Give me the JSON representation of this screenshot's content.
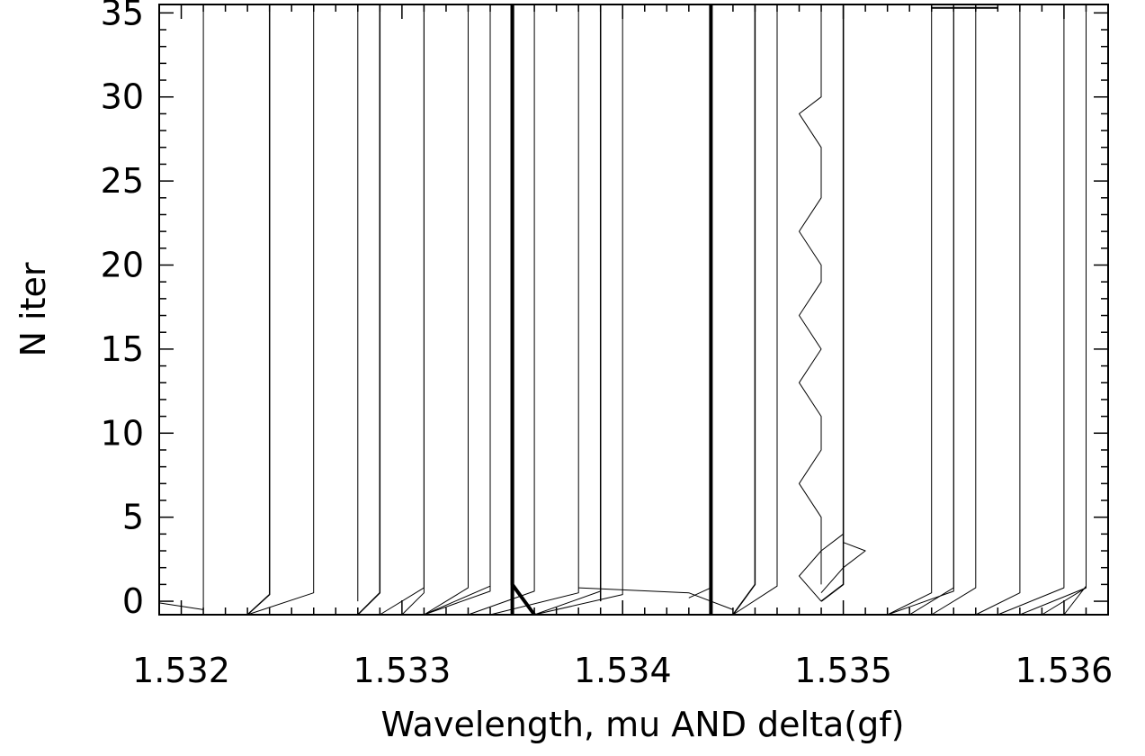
{
  "chart_data": {
    "type": "line",
    "title": "",
    "xlabel": "Wavelength, mu AND delta(gf)",
    "ylabel": "N iter",
    "xlim": [
      1.5319,
      1.5362
    ],
    "ylim": [
      -0.8,
      35.5
    ],
    "x_ticks": [
      1.532,
      1.533,
      1.534,
      1.535,
      1.536
    ],
    "x_tick_labels": [
      "1.532",
      "1.533",
      "1.534",
      "1.535",
      "1.536"
    ],
    "y_ticks": [
      0,
      5,
      10,
      15,
      20,
      25,
      30,
      35
    ],
    "y_tick_labels": [
      "0",
      "5",
      "10",
      "15",
      "20",
      "25",
      "30",
      "35"
    ],
    "grid": false,
    "line_color": "#000000",
    "legend_marker": {
      "x_range": [
        1.5354,
        1.5357
      ],
      "y": 35.3
    },
    "series": [
      {
        "width": 1,
        "points": [
          [
            1.5319,
            -0.1
          ],
          [
            1.5321,
            -0.5
          ],
          [
            1.5321,
            0.0
          ],
          [
            1.5321,
            0.5
          ],
          [
            1.5321,
            35.5
          ]
        ]
      },
      {
        "width": 1.5,
        "points": [
          [
            1.5323,
            -0.8
          ],
          [
            1.5324,
            0.4
          ],
          [
            1.5324,
            35.5
          ]
        ]
      },
      {
        "width": 1,
        "points": [
          [
            1.5323,
            -0.8
          ],
          [
            1.5326,
            0.5
          ],
          [
            1.5326,
            35.5
          ]
        ]
      },
      {
        "width": 1,
        "points": [
          [
            1.5328,
            0.0
          ],
          [
            1.5328,
            1.0
          ],
          [
            1.5328,
            3.0
          ],
          [
            1.5328,
            5.0
          ],
          [
            1.5328,
            7.0
          ],
          [
            1.5328,
            9.0
          ],
          [
            1.5328,
            11.0
          ],
          [
            1.5328,
            13.0
          ],
          [
            1.5328,
            15.0
          ],
          [
            1.5328,
            17.0
          ],
          [
            1.5328,
            19.0
          ],
          [
            1.5328,
            21.0
          ],
          [
            1.5328,
            23.0
          ],
          [
            1.5328,
            25.0
          ],
          [
            1.5328,
            27.0
          ],
          [
            1.5328,
            29.0
          ],
          [
            1.5328,
            31.0
          ],
          [
            1.5328,
            33.0
          ],
          [
            1.5328,
            35.5
          ]
        ]
      },
      {
        "width": 1.5,
        "points": [
          [
            1.5328,
            -0.8
          ],
          [
            1.5329,
            0.5
          ],
          [
            1.5329,
            5.0
          ],
          [
            1.5329,
            10.0
          ],
          [
            1.5329,
            15.0
          ],
          [
            1.5329,
            20.0
          ],
          [
            1.5329,
            25.0
          ],
          [
            1.5329,
            30.0
          ],
          [
            1.5329,
            35.5
          ]
        ]
      },
      {
        "width": 1,
        "points": [
          [
            1.5329,
            -0.8
          ],
          [
            1.5331,
            0.8
          ],
          [
            1.5331,
            35.5
          ]
        ]
      },
      {
        "width": 1,
        "points": [
          [
            1.533,
            -0.8
          ],
          [
            1.5331,
            0.5
          ],
          [
            1.5331,
            35.5
          ]
        ]
      },
      {
        "width": 1,
        "points": [
          [
            1.5331,
            -0.8
          ],
          [
            1.5333,
            0.8
          ],
          [
            1.5333,
            35.5
          ]
        ]
      },
      {
        "width": 1,
        "points": [
          [
            1.5331,
            -0.8
          ],
          [
            1.5334,
            0.6
          ],
          [
            1.5334,
            35.5
          ]
        ]
      },
      {
        "width": 1,
        "points": [
          [
            1.5331,
            -0.8
          ],
          [
            1.5334,
            0.9
          ],
          [
            1.5334,
            35.5
          ]
        ]
      },
      {
        "width": 4,
        "points": [
          [
            1.5335,
            -0.8
          ],
          [
            1.5335,
            1.0
          ],
          [
            1.5335,
            35.5
          ]
        ]
      },
      {
        "width": 4,
        "points": [
          [
            1.5336,
            -0.8
          ],
          [
            1.5335,
            1.0
          ],
          [
            1.5335,
            35.5
          ]
        ]
      },
      {
        "width": 1,
        "points": [
          [
            1.5333,
            -0.8
          ],
          [
            1.5336,
            0.6
          ],
          [
            1.5336,
            35.5
          ]
        ]
      },
      {
        "width": 1,
        "points": [
          [
            1.5334,
            -0.8
          ],
          [
            1.5338,
            0.5
          ],
          [
            1.5338,
            35.5
          ]
        ]
      },
      {
        "width": 1.5,
        "points": [
          [
            1.5339,
            0.0
          ],
          [
            1.5339,
            1.0
          ],
          [
            1.5339,
            35.5
          ]
        ]
      },
      {
        "width": 1,
        "points": [
          [
            1.5336,
            -0.8
          ],
          [
            1.5339,
            0.6
          ],
          [
            1.5339,
            35.5
          ]
        ]
      },
      {
        "width": 1,
        "points": [
          [
            1.5336,
            -0.8
          ],
          [
            1.534,
            0.4
          ],
          [
            1.534,
            35.5
          ]
        ]
      },
      {
        "width": 1,
        "points": [
          [
            1.5338,
            0.8
          ],
          [
            1.5343,
            0.5
          ],
          [
            1.5345,
            -0.5
          ]
        ]
      },
      {
        "width": 1,
        "points": [
          [
            1.5343,
            0.2
          ],
          [
            1.5344,
            0.8
          ],
          [
            1.5344,
            35.5
          ]
        ]
      },
      {
        "width": 4,
        "points": [
          [
            1.5344,
            -0.8
          ],
          [
            1.5344,
            0.5
          ],
          [
            1.5344,
            35.5
          ]
        ]
      },
      {
        "width": 1.5,
        "points": [
          [
            1.5345,
            -0.8
          ],
          [
            1.5346,
            1.0
          ],
          [
            1.5346,
            35.5
          ]
        ]
      },
      {
        "width": 1,
        "points": [
          [
            1.5345,
            -0.8
          ],
          [
            1.5347,
            0.9
          ],
          [
            1.5347,
            35.5
          ]
        ]
      },
      {
        "width": 1,
        "points": [
          [
            1.5349,
            1.0
          ],
          [
            1.5349,
            3.0
          ],
          [
            1.5349,
            5.0
          ],
          [
            1.5348,
            7.0
          ],
          [
            1.5349,
            9.0
          ],
          [
            1.5349,
            11.0
          ],
          [
            1.5348,
            13.0
          ],
          [
            1.5349,
            15.0
          ],
          [
            1.5348,
            17.0
          ],
          [
            1.5349,
            19.0
          ],
          [
            1.5349,
            20.0
          ],
          [
            1.5348,
            22.0
          ],
          [
            1.5349,
            24.0
          ],
          [
            1.5349,
            26.0
          ],
          [
            1.5349,
            27.0
          ],
          [
            1.5348,
            29.0
          ],
          [
            1.5349,
            30.0
          ],
          [
            1.5349,
            32.0
          ],
          [
            1.5349,
            34.0
          ],
          [
            1.5349,
            35.5
          ]
        ]
      },
      {
        "width": 1.5,
        "points": [
          [
            1.5349,
            0.0
          ],
          [
            1.535,
            1.0
          ],
          [
            1.535,
            3.0
          ],
          [
            1.535,
            5.0
          ],
          [
            1.535,
            35.5
          ]
        ]
      },
      {
        "width": 1,
        "points": [
          [
            1.5349,
            0.5
          ],
          [
            1.535,
            2.0
          ],
          [
            1.5351,
            3.0
          ],
          [
            1.535,
            3.5
          ],
          [
            1.535,
            35.5
          ]
        ]
      },
      {
        "width": 1,
        "points": [
          [
            1.5349,
            0.0
          ],
          [
            1.5348,
            1.5
          ],
          [
            1.5349,
            3.0
          ],
          [
            1.535,
            4.0
          ],
          [
            1.535,
            35.5
          ]
        ]
      },
      {
        "width": 1,
        "points": [
          [
            1.5352,
            -0.8
          ],
          [
            1.5354,
            0.5
          ],
          [
            1.5354,
            35.5
          ]
        ]
      },
      {
        "width": 1,
        "points": [
          [
            1.5352,
            -0.8
          ],
          [
            1.5355,
            0.6
          ],
          [
            1.5355,
            35.5
          ]
        ]
      },
      {
        "width": 1,
        "points": [
          [
            1.5353,
            -0.8
          ],
          [
            1.5355,
            0.8
          ],
          [
            1.5355,
            35.5
          ]
        ]
      },
      {
        "width": 1,
        "points": [
          [
            1.5354,
            -0.8
          ],
          [
            1.5356,
            0.8
          ],
          [
            1.5356,
            35.5
          ]
        ]
      },
      {
        "width": 1,
        "points": [
          [
            1.5356,
            -0.8
          ],
          [
            1.5358,
            0.5
          ],
          [
            1.5358,
            35.5
          ]
        ]
      },
      {
        "width": 1,
        "points": [
          [
            1.5357,
            -0.8
          ],
          [
            1.536,
            0.8
          ],
          [
            1.536,
            35.5
          ]
        ]
      },
      {
        "width": 1,
        "points": [
          [
            1.5358,
            -0.8
          ],
          [
            1.5361,
            0.8
          ],
          [
            1.5361,
            35.5
          ]
        ]
      },
      {
        "width": 1,
        "points": [
          [
            1.5359,
            -0.8
          ],
          [
            1.5361,
            0.8
          ],
          [
            1.5361,
            35.5
          ]
        ]
      },
      {
        "width": 1,
        "points": [
          [
            1.536,
            -0.8
          ],
          [
            1.5361,
            0.9
          ],
          [
            1.5361,
            35.5
          ]
        ]
      }
    ]
  }
}
